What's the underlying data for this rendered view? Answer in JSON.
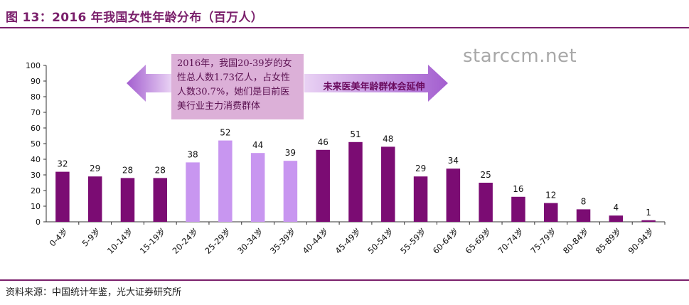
{
  "figure": {
    "title": "图 13：2016 年我国女性年龄分布（百万人）",
    "source": "资料来源：中国统计年鉴，光大证券研究所",
    "watermark": "starccm.net"
  },
  "annotations": {
    "note_text": "2016年，我国20-39岁的女性总人数1.73亿人，占女性人数30.7%，她们是目前医美行业主力消费群体",
    "future_text": "未来医美年龄群体会延伸"
  },
  "colors": {
    "dark_bar": "#7b0c73",
    "light_bar": "#c896f0",
    "accent": "#7a1f6b",
    "note_bg": "#dcb0d8"
  },
  "chart_data": {
    "type": "bar",
    "title": "",
    "xlabel": "",
    "ylabel": "",
    "ylim": [
      0,
      100
    ],
    "yticks": [
      0,
      10,
      20,
      30,
      40,
      50,
      60,
      70,
      80,
      90,
      100
    ],
    "grid": false,
    "categories": [
      "0-4岁",
      "5-9岁",
      "10-14岁",
      "15-19岁",
      "20-24岁",
      "25-29岁",
      "30-34岁",
      "35-39岁",
      "40-44岁",
      "45-49岁",
      "50-54岁",
      "55-59岁",
      "60-64岁",
      "65-69岁",
      "70-74岁",
      "75-79岁",
      "80-84岁",
      "85-89岁",
      "90-94岁"
    ],
    "values": [
      32,
      29,
      28,
      28,
      38,
      52,
      44,
      39,
      46,
      51,
      48,
      29,
      34,
      25,
      16,
      12,
      8,
      4,
      1
    ],
    "highlight_categories": [
      "20-24岁",
      "25-29岁",
      "30-34岁",
      "35-39岁"
    ]
  }
}
